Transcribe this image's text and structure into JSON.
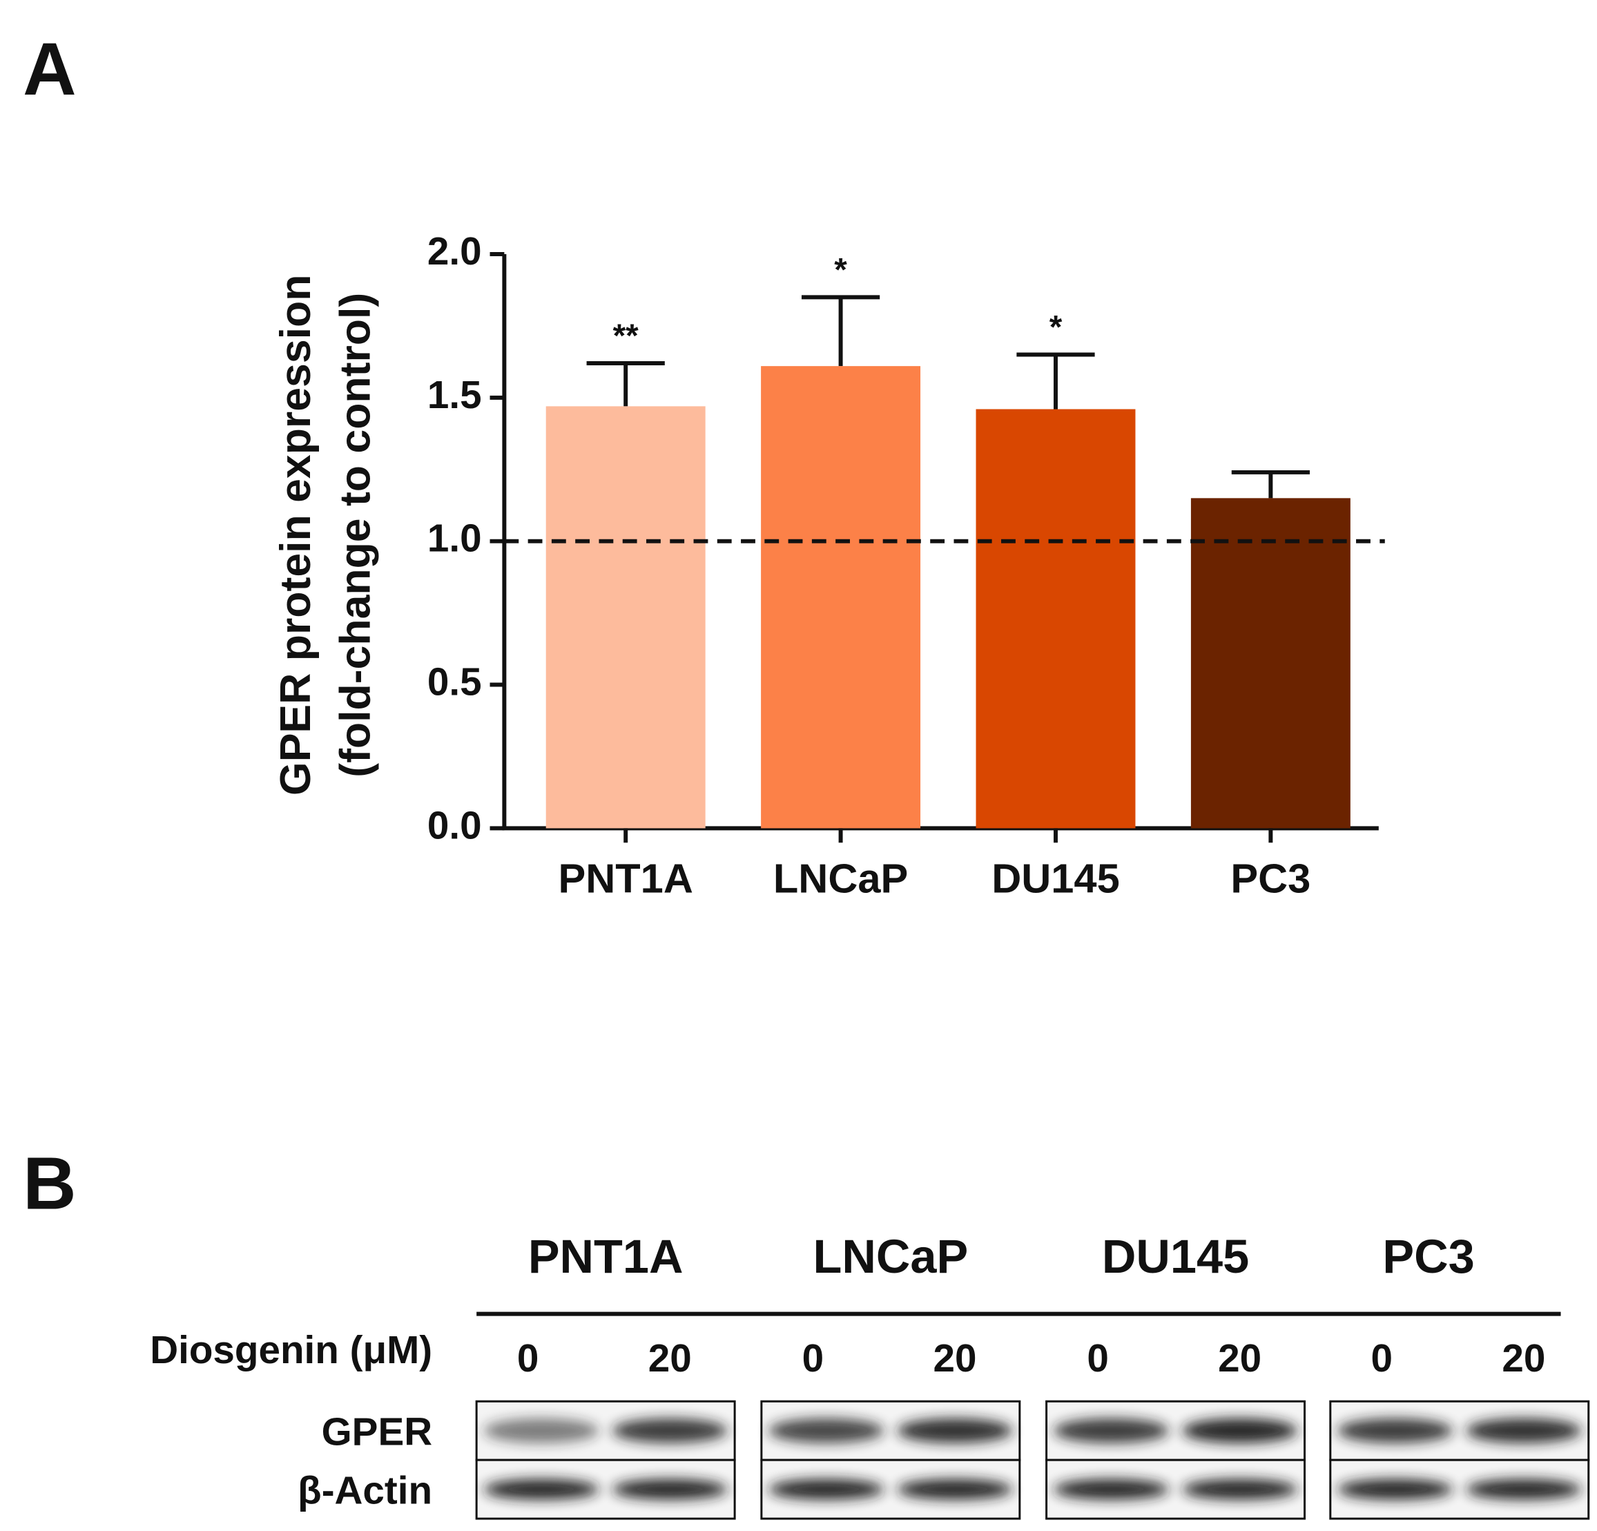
{
  "panel_labels": [
    "A",
    "B"
  ],
  "chart_data": {
    "type": "bar",
    "ylabel": [
      "GPER protein expression",
      "(fold-change to control)"
    ],
    "categories": [
      "PNT1A",
      "LNCaP",
      "DU145",
      "PC3"
    ],
    "values": [
      1.47,
      1.61,
      1.46,
      1.15
    ],
    "errors": [
      0.15,
      0.24,
      0.19,
      0.09
    ],
    "annotations": [
      "**",
      "*",
      "*",
      null
    ],
    "colors": [
      "#fdbb9c",
      "#fc8148",
      "#d94701",
      "#6b2300"
    ],
    "reference_line": 1.0,
    "ylim": [
      0,
      2
    ],
    "yticks": [
      {
        "value": 0,
        "label": "0.0"
      },
      {
        "value": 0.5,
        "label": "0.5"
      },
      {
        "value": 1,
        "label": "1.0"
      },
      {
        "value": 1.5,
        "label": "1.5"
      },
      {
        "value": 2,
        "label": "2.0"
      }
    ],
    "grid": false
  },
  "blot": {
    "cell_lines": [
      "PNT1A",
      "LNCaP",
      "DU145",
      "PC3"
    ],
    "treatment_label": "Diosgenin (μM)",
    "doses": [
      "0",
      "20",
      "0",
      "20",
      "0",
      "20",
      "0",
      "20"
    ],
    "rows": [
      "GPER",
      "β-Actin"
    ]
  }
}
